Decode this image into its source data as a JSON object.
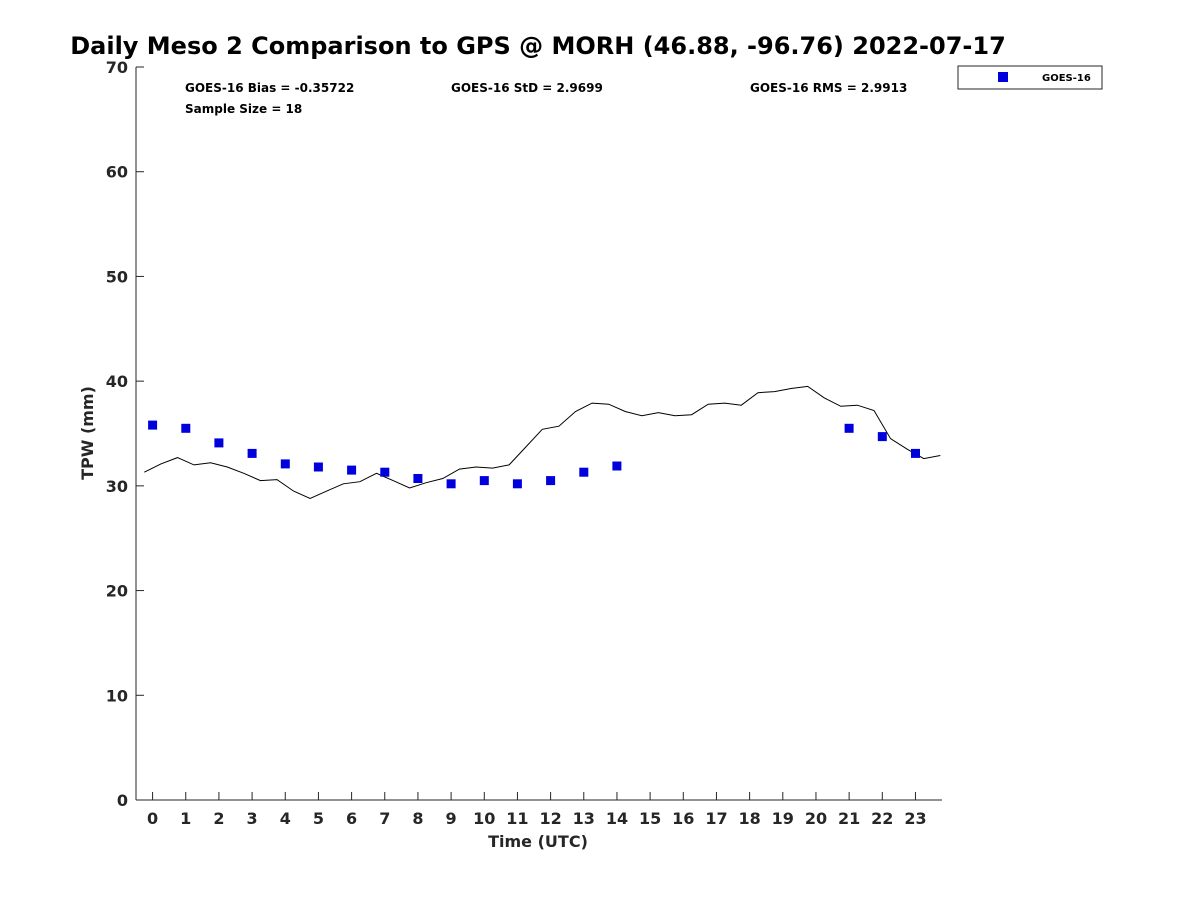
{
  "chart_data": {
    "type": "scatter",
    "title": "Daily Meso 2 Comparison to GPS @ MORH (46.88, -96.76) 2022-07-17",
    "xlabel": "Time (UTC)",
    "ylabel": "TPW (mm)",
    "xlim": [
      -0.5,
      23.8
    ],
    "ylim": [
      0,
      70
    ],
    "xticks": [
      0,
      1,
      2,
      3,
      4,
      5,
      6,
      7,
      8,
      9,
      10,
      11,
      12,
      13,
      14,
      15,
      16,
      17,
      18,
      19,
      20,
      21,
      22,
      23
    ],
    "yticks": [
      0,
      10,
      20,
      30,
      40,
      50,
      60,
      70
    ],
    "grid": false,
    "legend_position": "top-right, outside plot",
    "stats": {
      "bias": "GOES-16 Bias = -0.35722",
      "std": "GOES-16 StD = 2.9699",
      "rms": "GOES-16 RMS = 2.9913",
      "sample_size": "Sample Size = 18"
    },
    "series": [
      {
        "name": "GOES-16",
        "kind": "scatter",
        "marker": "square",
        "color": "#0000dd",
        "x": [
          0,
          1,
          2,
          3,
          4,
          5,
          6,
          7,
          8,
          9,
          10,
          11,
          12,
          13,
          14,
          21,
          22,
          23
        ],
        "y": [
          35.8,
          35.5,
          34.1,
          33.1,
          32.1,
          31.8,
          31.5,
          31.3,
          30.7,
          30.2,
          30.5,
          30.2,
          30.5,
          31.3,
          31.9,
          35.5,
          34.7,
          33.1
        ]
      },
      {
        "kind": "line",
        "color": "#000000",
        "x": [
          -0.25,
          0.25,
          0.75,
          1.25,
          1.75,
          2.25,
          2.75,
          3.25,
          3.75,
          4.25,
          4.75,
          5.25,
          5.75,
          6.25,
          6.75,
          7.25,
          7.75,
          8.25,
          8.75,
          9.25,
          9.75,
          10.25,
          10.75,
          11.25,
          11.75,
          12.25,
          12.75,
          13.25,
          13.75,
          14.25,
          14.75,
          15.25,
          15.75,
          16.25,
          16.75,
          17.25,
          17.75,
          18.25,
          18.75,
          19.25,
          19.75,
          20.25,
          20.75,
          21.25,
          21.75,
          22.25,
          22.75,
          23.25,
          23.75
        ],
        "y": [
          31.3,
          32.1,
          32.7,
          32.0,
          32.2,
          31.8,
          31.2,
          30.5,
          30.6,
          29.5,
          28.8,
          29.5,
          30.2,
          30.4,
          31.2,
          30.5,
          29.8,
          30.3,
          30.7,
          31.6,
          31.8,
          31.7,
          32.0,
          33.7,
          35.4,
          35.7,
          37.1,
          37.9,
          37.8,
          37.1,
          36.7,
          37.0,
          36.7,
          36.8,
          37.8,
          37.9,
          37.7,
          38.9,
          39.0,
          39.3,
          39.5,
          38.4,
          37.6,
          37.7,
          37.2,
          34.5,
          33.5,
          32.6,
          32.9
        ]
      }
    ]
  }
}
